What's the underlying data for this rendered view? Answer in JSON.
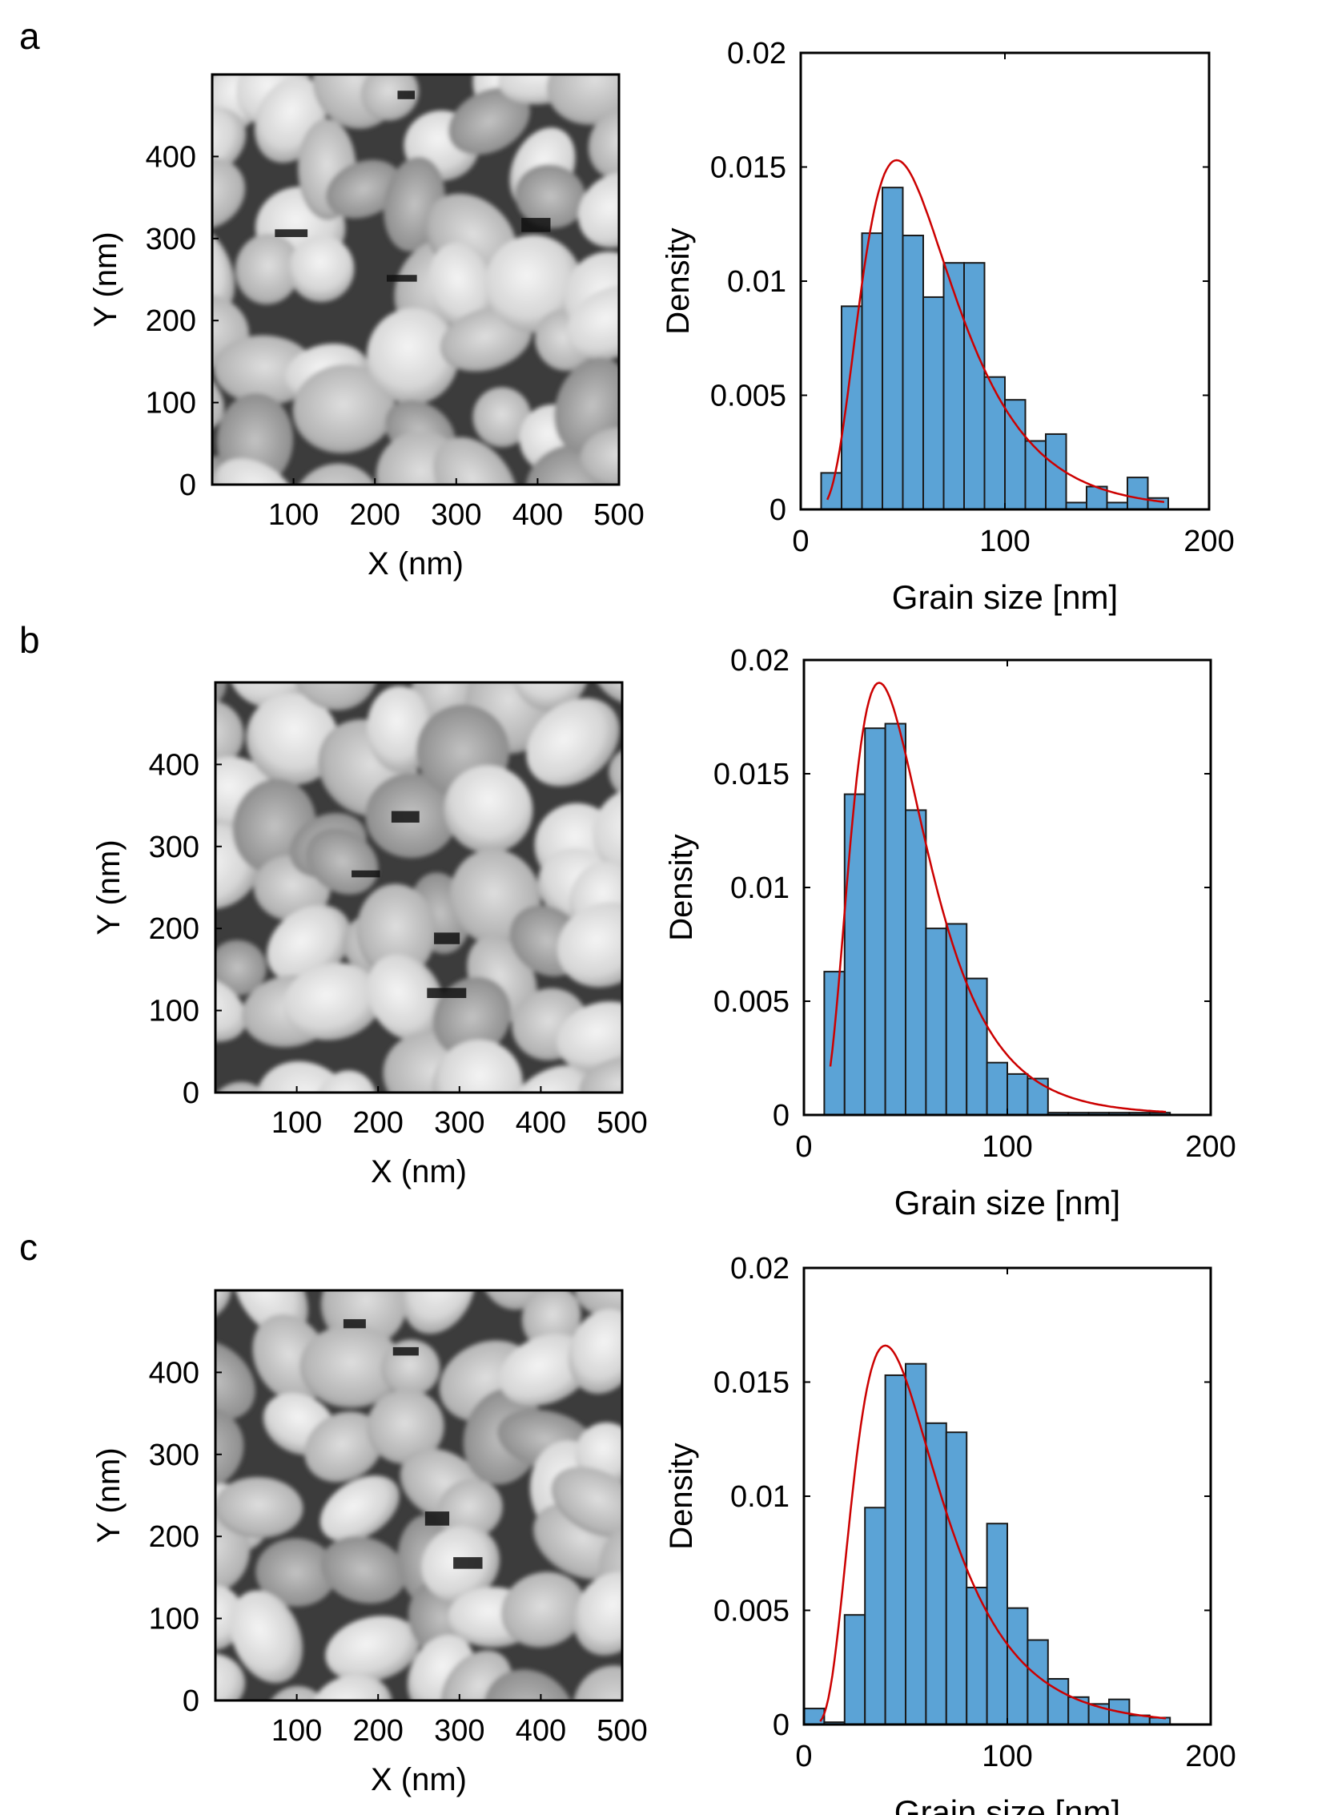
{
  "panels": [
    {
      "letter": "a",
      "afm": {
        "xlabel": "X (nm)",
        "ylabel": "Y (nm)",
        "xticks": [
          "100",
          "200",
          "300",
          "400",
          "500"
        ],
        "yticks": [
          "0",
          "100",
          "200",
          "300",
          "400"
        ],
        "xlim": [
          0,
          500
        ],
        "ylim": [
          0,
          500
        ]
      },
      "histogram": {
        "xlabel": "Grain size [nm]",
        "ylabel": "Density",
        "xticks": [
          "0",
          "100",
          "200"
        ],
        "yticks": [
          "0",
          "0.005",
          "0.01",
          "0.015",
          "0.02"
        ]
      }
    },
    {
      "letter": "b",
      "afm": {
        "xlabel": "X (nm)",
        "ylabel": "Y (nm)",
        "xticks": [
          "100",
          "200",
          "300",
          "400",
          "500"
        ],
        "yticks": [
          "0",
          "100",
          "200",
          "300",
          "400"
        ],
        "xlim": [
          0,
          500
        ],
        "ylim": [
          0,
          500
        ]
      },
      "histogram": {
        "xlabel": "Grain size [nm]",
        "ylabel": "Density",
        "xticks": [
          "0",
          "100",
          "200"
        ],
        "yticks": [
          "0",
          "0.005",
          "0.01",
          "0.015",
          "0.02"
        ]
      }
    },
    {
      "letter": "c",
      "afm": {
        "xlabel": "X (nm)",
        "ylabel": "Y (nm)",
        "xticks": [
          "100",
          "200",
          "300",
          "400",
          "500"
        ],
        "yticks": [
          "0",
          "100",
          "200",
          "300",
          "400"
        ],
        "xlim": [
          0,
          500
        ],
        "ylim": [
          0,
          500
        ]
      },
      "histogram": {
        "xlabel": "Grain size [nm]",
        "ylabel": "Density",
        "xticks": [
          "0",
          "100",
          "200"
        ],
        "yticks": [
          "0",
          "0.005",
          "0.01",
          "0.015",
          "0.02"
        ]
      }
    }
  ],
  "colors": {
    "bar_fill": "#5ba3d6",
    "bar_stroke": "#1a1a1a",
    "fit_line": "#cc0000",
    "axis": "#000000"
  },
  "chart_data": [
    {
      "type": "bar",
      "panel": "a",
      "title": "",
      "xlabel": "Grain size [nm]",
      "ylabel": "Density",
      "xlim": [
        0,
        200
      ],
      "ylim": [
        0,
        0.02
      ],
      "bin_width": 10,
      "bin_edges_start": 10,
      "values": [
        0.0016,
        0.0089,
        0.0121,
        0.0141,
        0.012,
        0.0093,
        0.0108,
        0.0108,
        0.0058,
        0.0048,
        0.003,
        0.0033,
        0.0003,
        0.001,
        0.0003,
        0.0014,
        0.0005
      ],
      "fit": {
        "name": "log-normal fit",
        "mode_x": 47,
        "peak_y": 0.0153,
        "sigma": 0.48
      }
    },
    {
      "type": "bar",
      "panel": "b",
      "title": "",
      "xlabel": "Grain size [nm]",
      "ylabel": "Density",
      "xlim": [
        0,
        200
      ],
      "ylim": [
        0,
        0.02
      ],
      "bin_width": 10,
      "bin_edges_start": 10,
      "values": [
        0.0063,
        0.0141,
        0.017,
        0.0172,
        0.0134,
        0.0082,
        0.0084,
        0.006,
        0.0023,
        0.0018,
        0.0016,
        0.0001,
        0.0001,
        0.0001,
        0.0001,
        0.0001,
        0.0001
      ],
      "fit": {
        "name": "log-normal fit",
        "mode_x": 37,
        "peak_y": 0.019,
        "sigma": 0.5
      }
    },
    {
      "type": "bar",
      "panel": "c",
      "title": "",
      "xlabel": "Grain size [nm]",
      "ylabel": "Density",
      "xlim": [
        0,
        200
      ],
      "ylim": [
        0,
        0.02
      ],
      "bin_width": 10,
      "bin_edges_start": 0,
      "values": [
        0.0007,
        0.0001,
        0.0048,
        0.0095,
        0.0153,
        0.0158,
        0.0132,
        0.0128,
        0.006,
        0.0088,
        0.0051,
        0.0037,
        0.002,
        0.0012,
        0.0009,
        0.0011,
        0.0004,
        0.0003
      ],
      "fit": {
        "name": "log-normal fit",
        "mode_x": 40,
        "peak_y": 0.0166,
        "sigma": 0.52
      }
    }
  ]
}
